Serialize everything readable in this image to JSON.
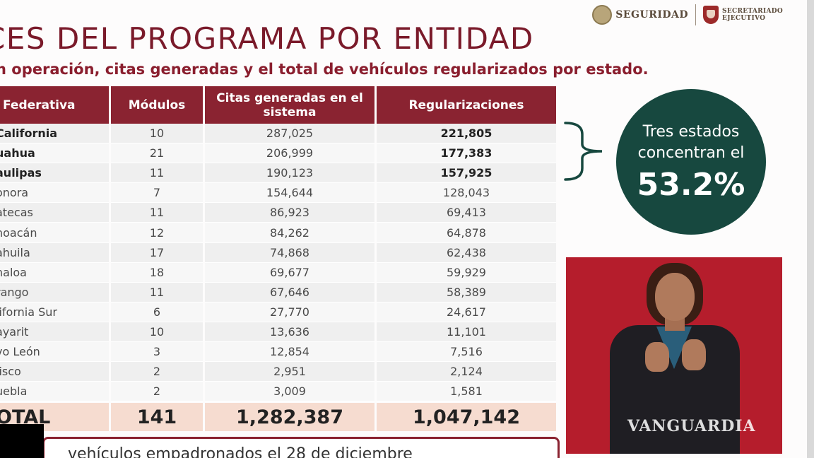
{
  "header": {
    "logo_left": "SEGURIDAD",
    "logo_right_line1": "SECRETARIADO",
    "logo_right_line2": "EJECUTIVO"
  },
  "title": "CES DEL PROGRAMA POR ENTIDAD",
  "subtitle": "n operación, citas generadas y el total de vehículos regularizados por estado.",
  "table": {
    "headers": [
      "Federativa",
      "Módulos",
      "Citas generadas en el sistema",
      "Regularizaciones"
    ],
    "rows": [
      {
        "entidad": "California",
        "modulos": "10",
        "citas": "287,025",
        "regularizaciones": "221,805"
      },
      {
        "entidad": "uahua",
        "modulos": "21",
        "citas": "206,999",
        "regularizaciones": "177,383"
      },
      {
        "entidad": "aulipas",
        "modulos": "11",
        "citas": "190,123",
        "regularizaciones": "157,925"
      },
      {
        "entidad": "onora",
        "modulos": "7",
        "citas": "154,644",
        "regularizaciones": "128,043"
      },
      {
        "entidad": "atecas",
        "modulos": "11",
        "citas": "86,923",
        "regularizaciones": "69,413"
      },
      {
        "entidad": "hoacán",
        "modulos": "12",
        "citas": "84,262",
        "regularizaciones": "64,878"
      },
      {
        "entidad": "ahuila",
        "modulos": "17",
        "citas": "74,868",
        "regularizaciones": "62,438"
      },
      {
        "entidad": "naloa",
        "modulos": "18",
        "citas": "69,677",
        "regularizaciones": "59,929"
      },
      {
        "entidad": "rango",
        "modulos": "11",
        "citas": "67,646",
        "regularizaciones": "58,389"
      },
      {
        "entidad": "lifornia Sur",
        "modulos": "6",
        "citas": "27,770",
        "regularizaciones": "24,617"
      },
      {
        "entidad": "ayarit",
        "modulos": "10",
        "citas": "13,636",
        "regularizaciones": "11,101"
      },
      {
        "entidad": "vo León",
        "modulos": "3",
        "citas": "12,854",
        "regularizaciones": "7,516"
      },
      {
        "entidad": "lisco",
        "modulos": "2",
        "citas": "2,951",
        "regularizaciones": "2,124"
      },
      {
        "entidad": "uebla",
        "modulos": "2",
        "citas": "3,009",
        "regularizaciones": "1,581"
      }
    ],
    "total": {
      "label": "OTAL",
      "modulos": "141",
      "citas": "1,282,387",
      "regularizaciones": "1,047,142"
    }
  },
  "callout": {
    "text": "Tres estados concentran el",
    "percent": "53.2%"
  },
  "watermark": "VANGUARDIA",
  "bottom_text": "vehículos empadronados el 28 de diciembre",
  "colors": {
    "maroon": "#8a2331",
    "title": "#7a1a2a",
    "green_circle": "#17483f",
    "total_row": "#f6dcd0",
    "video_bg": "#b51d2c"
  }
}
